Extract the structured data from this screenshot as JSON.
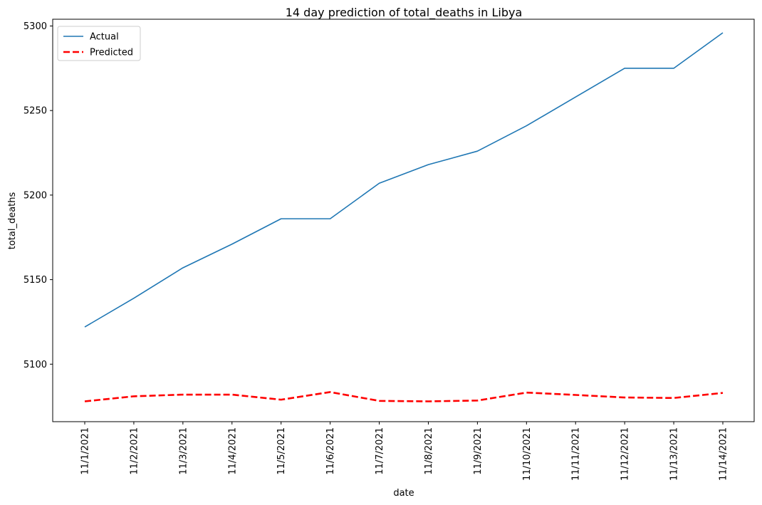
{
  "chart_data": {
    "type": "line",
    "title": "14 day prediction of total_deaths in Libya",
    "xlabel": "date",
    "ylabel": "total_deaths",
    "categories": [
      "11/1/2021",
      "11/2/2021",
      "11/3/2021",
      "11/4/2021",
      "11/5/2021",
      "11/6/2021",
      "11/7/2021",
      "11/8/2021",
      "11/9/2021",
      "11/10/2021",
      "11/11/2021",
      "11/12/2021",
      "11/13/2021",
      "11/14/2021"
    ],
    "yticks": [
      5100,
      5150,
      5200,
      5250,
      5300
    ],
    "ylim": [
      5066,
      5304
    ],
    "grid": false,
    "legend_position": "upper-left",
    "series": [
      {
        "name": "Actual",
        "color": "#1f77b4",
        "style": "solid",
        "values": [
          5122,
          5139,
          5157,
          5171,
          5186,
          5186,
          5207,
          5218,
          5226,
          5241,
          5258,
          5275,
          5275,
          5296
        ]
      },
      {
        "name": "Predicted",
        "color": "#ff0000",
        "style": "dashed",
        "values": [
          5078,
          5081,
          5082,
          5082,
          5079,
          5083.5,
          5078.3,
          5078,
          5078.5,
          5083.2,
          5081.8,
          5080.3,
          5080,
          5083
        ]
      }
    ]
  }
}
